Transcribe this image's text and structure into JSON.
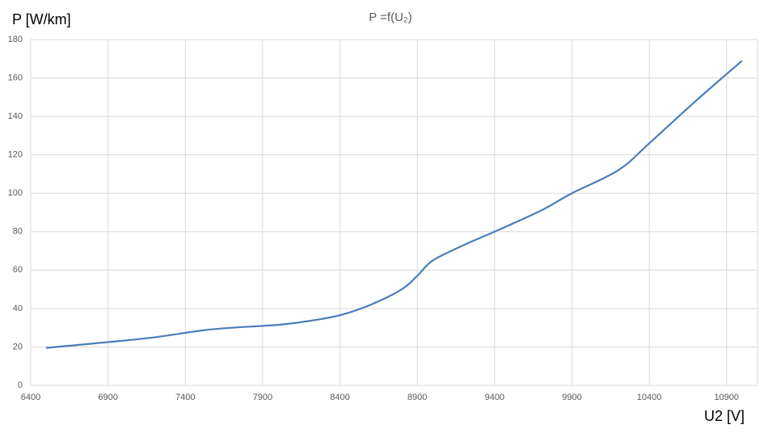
{
  "chart_data": {
    "type": "line",
    "title": "P =f(U₂)",
    "y_label": "P [W/km]",
    "x_label": "U2 [V]",
    "x": [
      6500,
      6900,
      7200,
      7500,
      7700,
      8000,
      8200,
      8400,
      8600,
      8800,
      8900,
      9000,
      9200,
      9400,
      9700,
      9900,
      10200,
      10400,
      10700,
      11000
    ],
    "series": [
      {
        "color": "#4a7ebb",
        "values": [
          19.5,
          22.5,
          25,
          28.5,
          30,
          31.5,
          33.5,
          36.5,
          42,
          50,
          57,
          65,
          73,
          80,
          91,
          100,
          112,
          126,
          148,
          169
        ]
      }
    ],
    "xlim": [
      6400,
      11100
    ],
    "xticks": [
      6400,
      6900,
      7400,
      7900,
      8400,
      8900,
      9400,
      9900,
      10400,
      10900
    ],
    "ylim": [
      0,
      180
    ],
    "yticks": [
      0,
      20,
      40,
      60,
      80,
      100,
      120,
      140,
      160,
      180
    ],
    "grid": true
  }
}
